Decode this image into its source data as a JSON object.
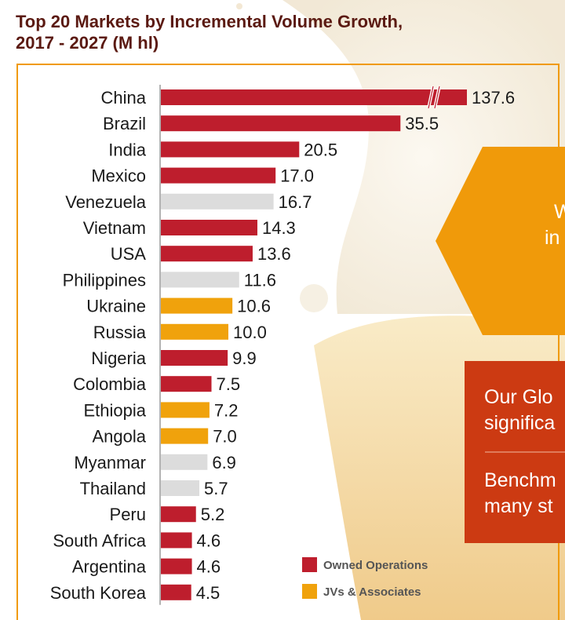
{
  "title": {
    "line1": "Top 20 Markets by Incremental Volume Growth,",
    "line2": "2017 - 2027 (M hl)"
  },
  "colors": {
    "owned": "#be1e2d",
    "jv": "#f0a20c",
    "other": "#dcdcdc",
    "title": "#5b1a12",
    "hexagon": "#f09a0a",
    "panel": "#cc3a12"
  },
  "chart_data": {
    "type": "bar",
    "orientation": "horizontal",
    "categories": [
      "China",
      "Brazil",
      "India",
      "Mexico",
      "Venezuela",
      "Vietnam",
      "USA",
      "Philippines",
      "Ukraine",
      "Russia",
      "Nigeria",
      "Colombia",
      "Ethiopia",
      "Angola",
      "Myanmar",
      "Thailand",
      "Peru",
      "South Africa",
      "Argentina",
      "South Korea"
    ],
    "values": [
      137.6,
      35.5,
      20.5,
      17.0,
      16.7,
      14.3,
      13.6,
      11.6,
      10.6,
      10.0,
      9.9,
      7.5,
      7.2,
      7.0,
      6.9,
      5.7,
      5.2,
      4.6,
      4.6,
      4.5
    ],
    "value_labels": [
      "137.6",
      "35.5",
      "20.5",
      "17.0",
      "16.7",
      "14.3",
      "13.6",
      "11.6",
      "10.6",
      "10.0",
      "9.9",
      "7.5",
      "7.2",
      "7.0",
      "6.9",
      "5.7",
      "5.2",
      "4.6",
      "4.6",
      "4.5"
    ],
    "groups": [
      "owned",
      "owned",
      "owned",
      "owned",
      "other",
      "owned",
      "owned",
      "other",
      "jv",
      "jv",
      "owned",
      "owned",
      "jv",
      "jv",
      "other",
      "other",
      "owned",
      "owned",
      "owned",
      "owned"
    ],
    "broken_axis_on": "China",
    "legend": [
      {
        "key": "owned",
        "label": "Owned Operations"
      },
      {
        "key": "jv",
        "label": "JVs & Associates"
      }
    ],
    "legend_position": "bottom-right",
    "grid": false
  },
  "side_panel": {
    "hex_lines": [
      "W",
      "in"
    ],
    "panel_lines": [
      "Our Glo",
      "significa",
      "Benchm",
      "many st"
    ]
  }
}
